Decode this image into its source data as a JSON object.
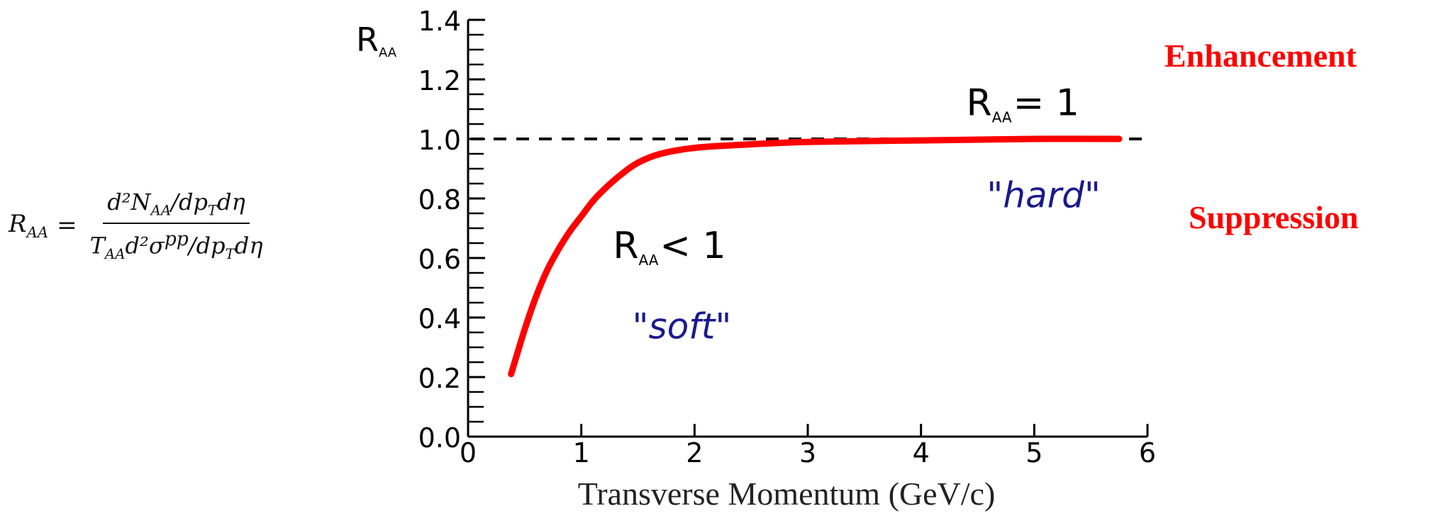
{
  "formula": {
    "lhs": "R",
    "lhs_sub": "AA",
    "equals": "=",
    "numerator": "d²N",
    "numerator_sub": "AA",
    "numerator_rest": "/dp",
    "numerator_sub2": "T",
    "numerator_end": "dη",
    "denominator": "T",
    "denominator_sub": "AA",
    "denominator_mid": "d²σ",
    "denominator_sup": "pp",
    "denominator_rest": "/dp",
    "denominator_sub2": "T",
    "denominator_end": "dη"
  },
  "side_labels": {
    "enhancement": "Enhancement",
    "suppression": "Suppression"
  },
  "chart_data": {
    "type": "line",
    "title": "",
    "ylabel": "R",
    "ylabel_sub": "AA",
    "xlabel": "Transverse Momentum (GeV/c)",
    "xlim": [
      0,
      6
    ],
    "ylim": [
      0.0,
      1.4
    ],
    "xticks": [
      0,
      1,
      2,
      3,
      4,
      5,
      6
    ],
    "xtick_labels": [
      "0",
      "1",
      "2",
      "3",
      "4",
      "5",
      "6"
    ],
    "yticks": [
      0.0,
      0.2,
      0.4,
      0.6,
      0.8,
      1.0,
      1.2,
      1.4
    ],
    "ytick_labels": [
      "0.0",
      "0.2",
      "0.4",
      "0.6",
      "0.8",
      "1.0",
      "1.2",
      "1.4"
    ],
    "grid": false,
    "series": [
      {
        "color": "#ff0000",
        "x": [
          0.38,
          0.5,
          0.6,
          0.7,
          0.8,
          0.9,
          1.0,
          1.1,
          1.2,
          1.35,
          1.5,
          1.7,
          2.0,
          2.4,
          3.0,
          4.0,
          5.0,
          5.75
        ],
        "y": [
          0.21,
          0.36,
          0.47,
          0.56,
          0.63,
          0.69,
          0.74,
          0.79,
          0.83,
          0.88,
          0.92,
          0.95,
          0.97,
          0.98,
          0.99,
          0.995,
          1.0,
          1.0
        ]
      }
    ],
    "reference_line": {
      "y": 1.0,
      "style": "dashed",
      "color": "#000000"
    },
    "annotations": [
      {
        "text": "R",
        "sub": "AA",
        "rest": "= 1",
        "x": 4.4,
        "y": 1.08,
        "color": "#000000"
      },
      {
        "text": "R",
        "sub": "AA",
        "rest": "< 1",
        "x": 1.28,
        "y": 0.6,
        "color": "#000000"
      },
      {
        "text": "\"hard\"",
        "x": 4.58,
        "y": 0.77,
        "color": "#1a1a8c"
      },
      {
        "text": "\"soft\"",
        "x": 1.45,
        "y": 0.33,
        "color": "#1a1a8c"
      }
    ]
  }
}
